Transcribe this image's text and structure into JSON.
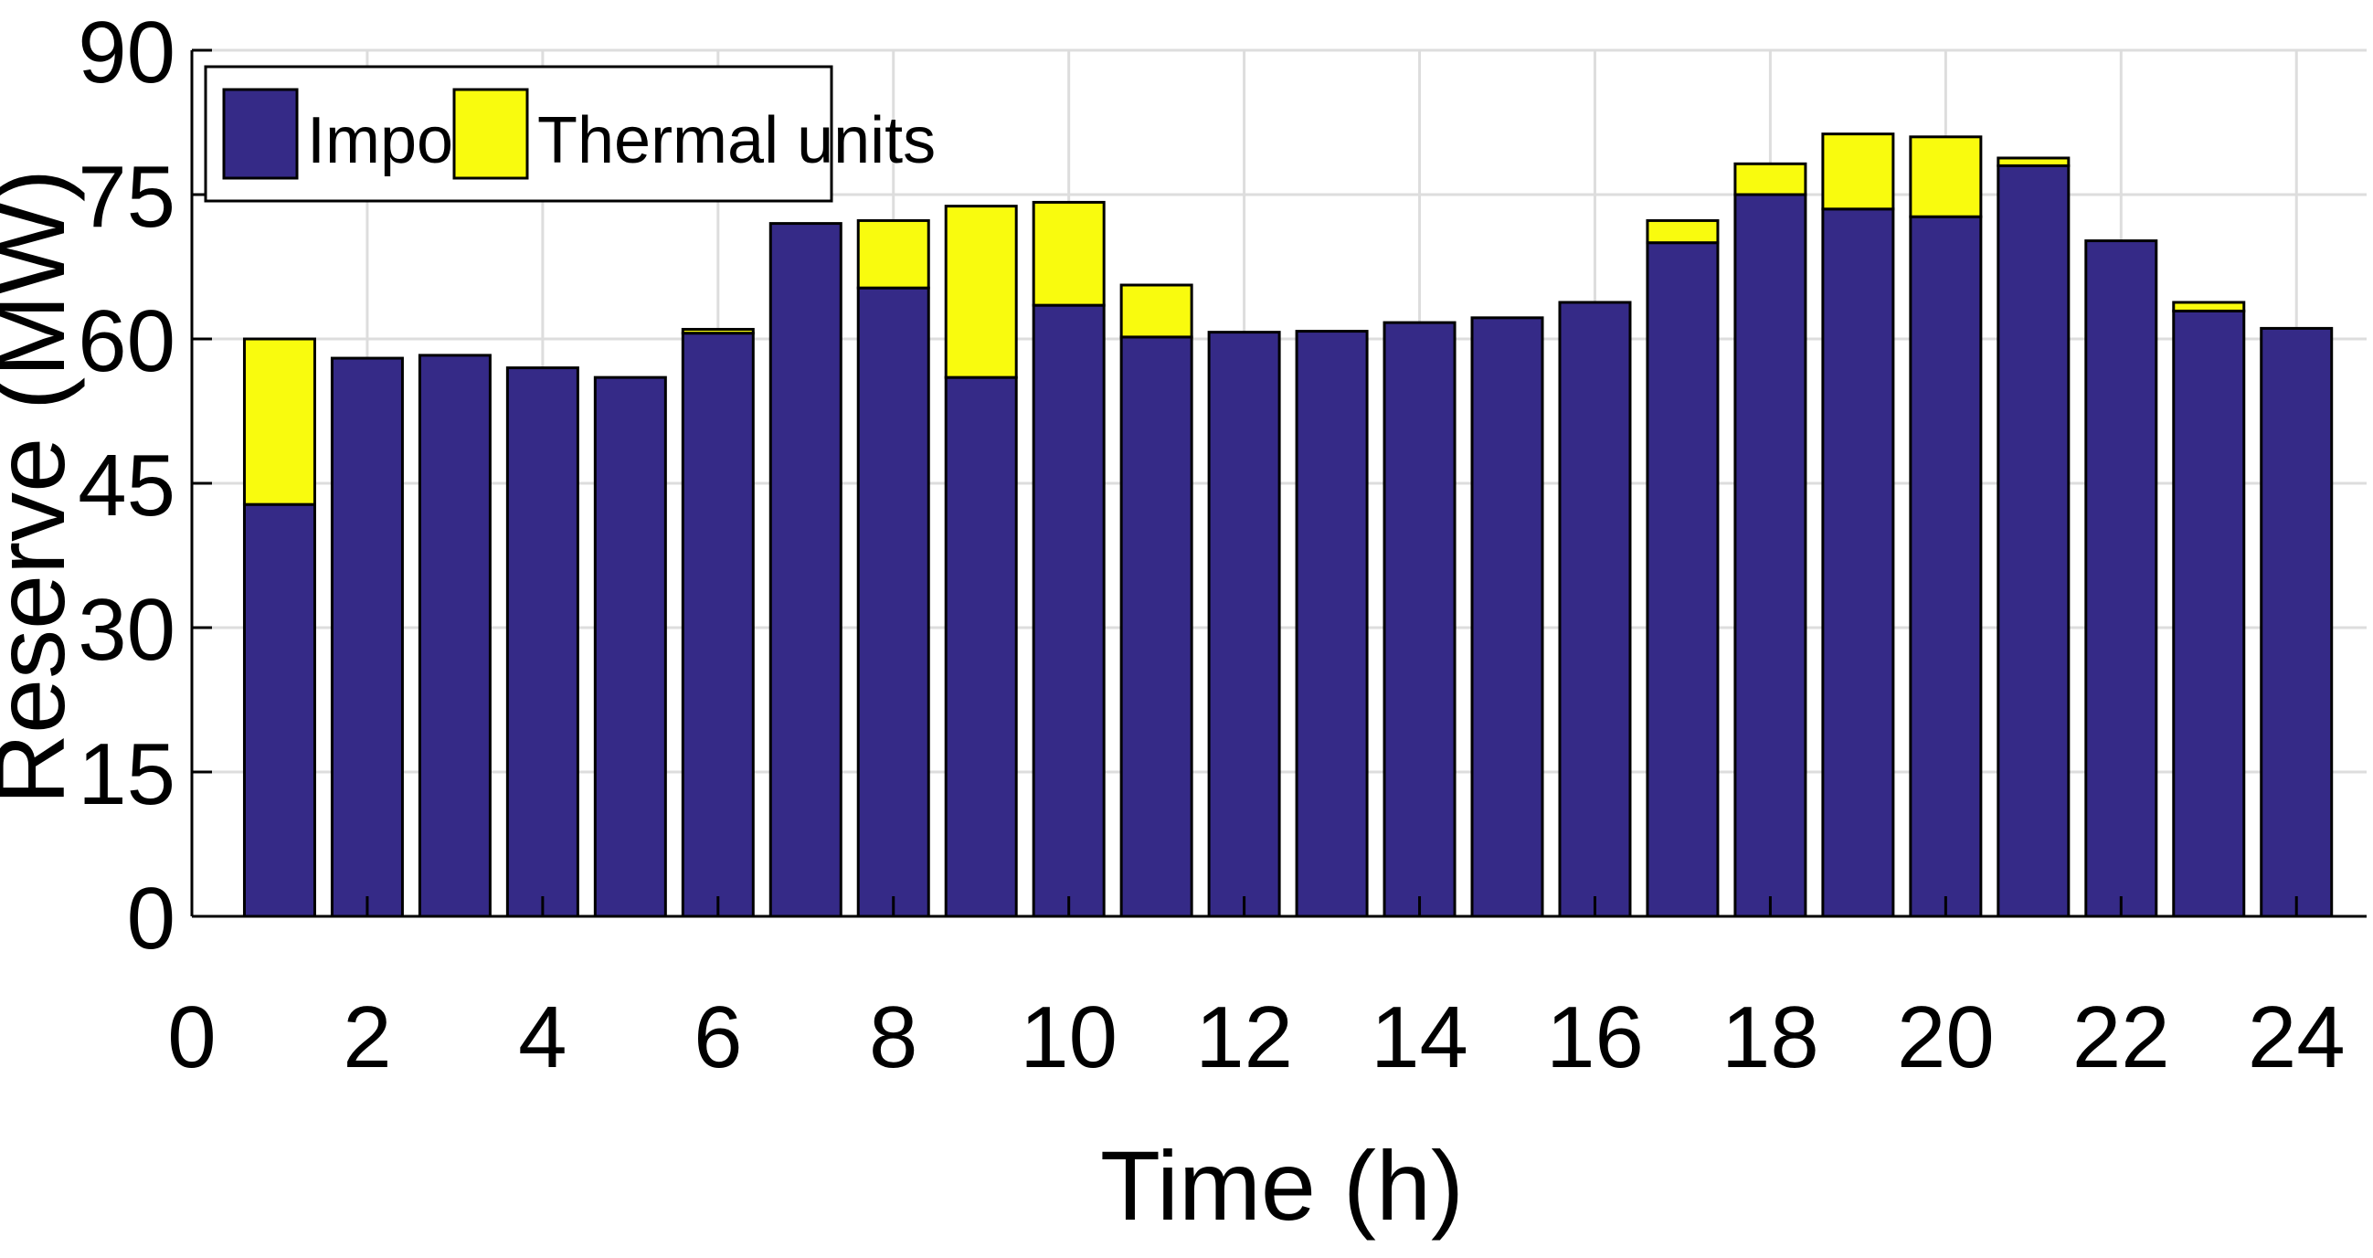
{
  "chart_data": {
    "type": "bar",
    "stacked": true,
    "xlabel": "Time (h)",
    "ylabel": "Reserve (MW)",
    "xlim": [
      0,
      24.8
    ],
    "ylim": [
      0,
      90
    ],
    "x_ticks": [
      0,
      2,
      4,
      6,
      8,
      10,
      12,
      14,
      16,
      18,
      20,
      22,
      24
    ],
    "y_ticks": [
      0,
      15,
      30,
      45,
      60,
      75,
      90
    ],
    "grid": true,
    "legend_position": "top-left",
    "x": [
      1,
      2,
      3,
      4,
      5,
      6,
      7,
      8,
      9,
      10,
      11,
      12,
      13,
      14,
      15,
      16,
      17,
      18,
      19,
      20,
      21,
      22,
      23,
      24
    ],
    "series": [
      {
        "name": "Import",
        "color": "#352a87",
        "values": [
          42.8,
          58.0,
          58.3,
          57.0,
          56.0,
          60.6,
          72.0,
          65.3,
          56.0,
          63.5,
          60.2,
          60.7,
          60.8,
          61.7,
          62.2,
          63.8,
          70.0,
          75.0,
          73.5,
          72.7,
          78.0,
          70.2,
          62.9,
          61.1
        ]
      },
      {
        "name": "Thermal units",
        "color": "#f9fb0e",
        "values": [
          17.2,
          0,
          0,
          0,
          0,
          0.4,
          0,
          7.0,
          17.8,
          10.7,
          5.4,
          0,
          0,
          0,
          0,
          0,
          2.3,
          3.2,
          7.8,
          8.3,
          0.8,
          0,
          0.9,
          0
        ]
      }
    ]
  }
}
